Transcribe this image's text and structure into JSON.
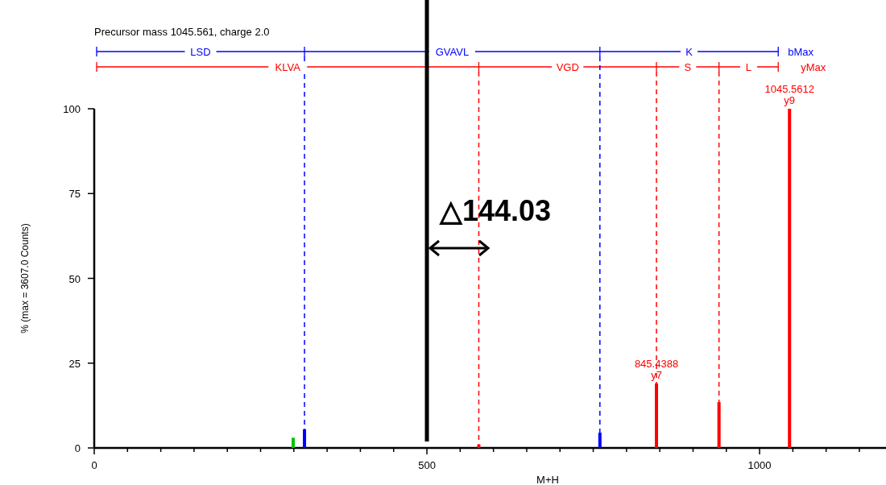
{
  "chart_data": {
    "type": "bar",
    "title": "Precursor mass 1045.561, charge 2.0",
    "xlabel": "M+H",
    "ylabel": "% (max = 3607.0 Counts)",
    "xlim": [
      0,
      1190
    ],
    "ylim": [
      0,
      100
    ],
    "xticks": [
      0,
      {
        "value": 50,
        "label": null
      },
      {
        "value": 100,
        "label": null
      },
      {
        "value": 150,
        "label": null
      },
      {
        "value": 200,
        "label": null
      },
      {
        "value": 250,
        "label": null
      },
      {
        "value": 300,
        "label": null
      },
      {
        "value": 350,
        "label": null
      },
      {
        "value": 400,
        "label": null
      },
      {
        "value": 450,
        "label": null
      },
      500,
      {
        "value": 550,
        "label": null
      },
      {
        "value": 600,
        "label": null
      },
      {
        "value": 650,
        "label": null
      },
      {
        "value": 700,
        "label": null
      },
      {
        "value": 750,
        "label": null
      },
      {
        "value": 800,
        "label": null
      },
      {
        "value": 850,
        "label": null
      },
      {
        "value": 900,
        "label": null
      },
      {
        "value": 950,
        "label": null
      },
      1000,
      {
        "value": 1050,
        "label": null
      },
      {
        "value": 1100,
        "label": null
      },
      {
        "value": 1150,
        "label": null
      }
    ],
    "yticks": [
      0,
      25,
      50,
      75,
      100
    ],
    "series": [
      {
        "color": "#0000ff",
        "x": [
          316,
          760
        ],
        "values": [
          5.5,
          4.5
        ]
      },
      {
        "color": "#ff0000",
        "x": [
          578,
          845,
          939,
          1045
        ],
        "values": [
          1,
          19,
          13.5,
          100
        ]
      },
      {
        "color": "#00c000",
        "x": [
          299
        ],
        "values": [
          3
        ]
      }
    ],
    "ref_lines": [
      {
        "axis": "x",
        "value": 316,
        "color": "#0000ff",
        "line_style": "dashed"
      },
      {
        "axis": "x",
        "value": 760,
        "color": "#0000ff",
        "line_style": "dashed"
      },
      {
        "axis": "x",
        "value": 578,
        "color": "#ff0000",
        "line_style": "dashed"
      },
      {
        "axis": "x",
        "value": 845,
        "color": "#ff0000",
        "line_style": "dashed"
      },
      {
        "axis": "x",
        "value": 939,
        "color": "#ff0000",
        "line_style": "dashed"
      },
      {
        "axis": "x",
        "value": 500,
        "color": "#000000",
        "line_style": "solid"
      }
    ],
    "annotations": [
      {
        "text": "845.4388\ny7",
        "x": 845,
        "y": 19
      },
      {
        "text": "1045.5612\ny9",
        "x": 1045,
        "y": 100
      },
      "LSD",
      "GVAVL",
      "K",
      "bMax",
      "KLVA",
      "VGD",
      "S",
      "L",
      "yMax",
      "△144.03"
    ]
  }
}
